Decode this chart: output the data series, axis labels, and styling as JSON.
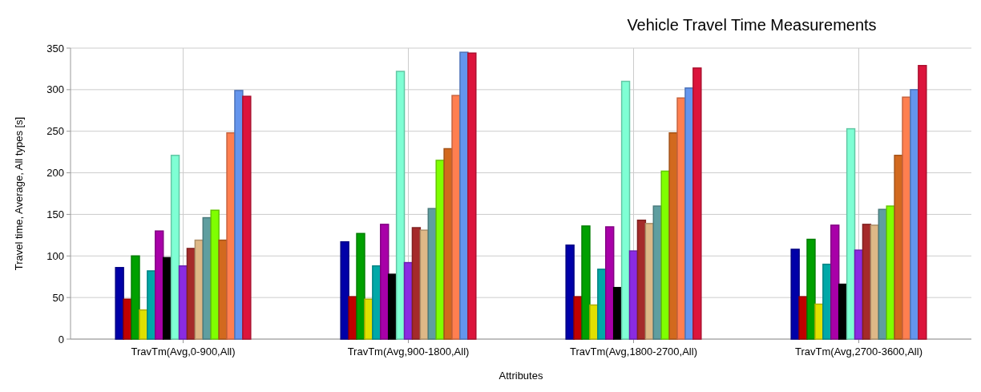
{
  "chart_data": {
    "type": "bar",
    "title": "Vehicle Travel Time Measurements",
    "xlabel": "Attributes",
    "ylabel": "Travel time, Average, All types [s]",
    "categories": [
      "TravTm(Avg,0-900,All)",
      "TravTm(Avg,900-1800,All)",
      "TravTm(Avg,1800-2700,All)",
      "TravTm(Avg,2700-3600,All)"
    ],
    "series": [
      {
        "color": "#0000a8",
        "values": [
          86,
          117,
          113,
          108
        ]
      },
      {
        "color": "#c00000",
        "values": [
          48,
          51,
          51,
          51
        ]
      },
      {
        "color": "#00a000",
        "values": [
          100,
          127,
          136,
          120
        ]
      },
      {
        "color": "#e0e000",
        "values": [
          35,
          48,
          41,
          42
        ]
      },
      {
        "color": "#00a8a8",
        "values": [
          82,
          88,
          84,
          90
        ]
      },
      {
        "color": "#a800a8",
        "values": [
          130,
          138,
          135,
          137
        ]
      },
      {
        "color": "#000000",
        "values": [
          98,
          78,
          62,
          66
        ]
      },
      {
        "color": "#7fffd4",
        "values": [
          221,
          322,
          310,
          253
        ]
      },
      {
        "color": "#8a2be2",
        "values": [
          88,
          92,
          106,
          107
        ]
      },
      {
        "color": "#a52a2a",
        "values": [
          109,
          134,
          143,
          138
        ]
      },
      {
        "color": "#deb887",
        "values": [
          119,
          131,
          139,
          137
        ]
      },
      {
        "color": "#5f9ea0",
        "values": [
          146,
          157,
          160,
          156
        ]
      },
      {
        "color": "#7fff00",
        "values": [
          155,
          215,
          202,
          160
        ]
      },
      {
        "color": "#d2691e",
        "values": [
          119,
          229,
          248,
          221
        ]
      },
      {
        "color": "#ff7f50",
        "values": [
          248,
          293,
          290,
          291
        ]
      },
      {
        "color": "#6495ed",
        "values": [
          299,
          345,
          302,
          300
        ]
      },
      {
        "color": "#dc143c",
        "values": [
          292,
          344,
          326,
          329
        ]
      }
    ],
    "ylim": [
      0,
      350
    ],
    "yticks": [
      0,
      50,
      100,
      150,
      200,
      250,
      300,
      350
    ],
    "grid": true
  }
}
